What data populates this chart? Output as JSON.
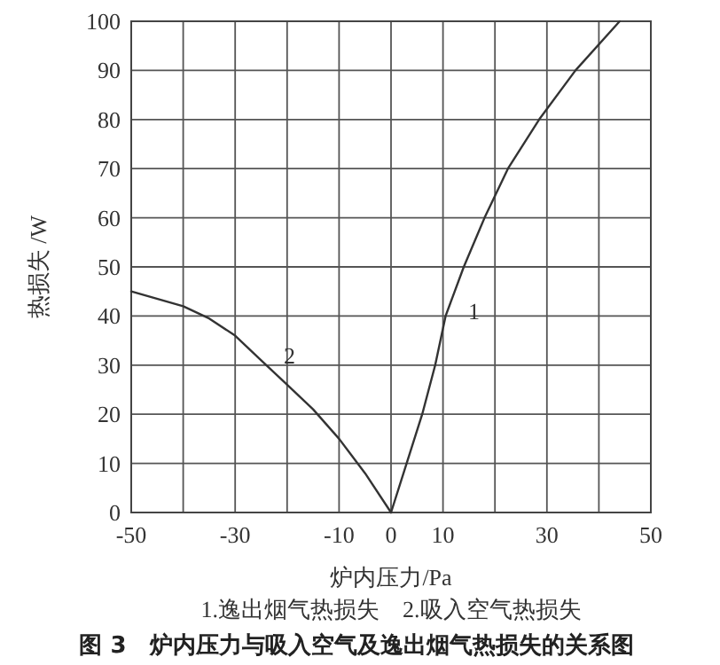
{
  "chart_data": {
    "type": "line",
    "title": "图 3　炉内压力与吸入空气及逸出烟气热损失的关系图",
    "xlabel": "炉内压力/Pa",
    "ylabel": "热损失 /W",
    "xlim": [
      -50,
      50
    ],
    "xticks": [
      -50,
      {
        "value": -40,
        "label": null
      },
      -30,
      {
        "value": -20,
        "label": null
      },
      -10,
      0,
      10,
      {
        "value": 20,
        "label": null
      },
      30,
      {
        "value": 40,
        "label": null
      },
      50
    ],
    "ylim": [
      0,
      100
    ],
    "yticks": [
      0,
      10,
      20,
      30,
      40,
      50,
      60,
      70,
      80,
      90,
      100
    ],
    "grid": true,
    "marker": "none",
    "line_style": "solid",
    "series": [
      {
        "name": "1",
        "color": "#333333",
        "x": [
          0,
          3,
          6,
          8.5,
          10.5,
          14,
          18,
          22.5,
          28.5,
          35.5,
          44
        ],
        "values": [
          0,
          10,
          20,
          30,
          40,
          50,
          60,
          70,
          80,
          90,
          100
        ]
      },
      {
        "name": "2",
        "color": "#333333",
        "x": [
          -50,
          -40,
          -35,
          -30,
          -25,
          -20,
          -15,
          -10,
          -5,
          0
        ],
        "values": [
          45,
          42,
          39.5,
          36,
          31,
          26,
          21,
          15,
          8,
          0
        ]
      }
    ],
    "annotations": [
      "1.逸出烟气热损失　2.吸入空气热损失"
    ]
  }
}
